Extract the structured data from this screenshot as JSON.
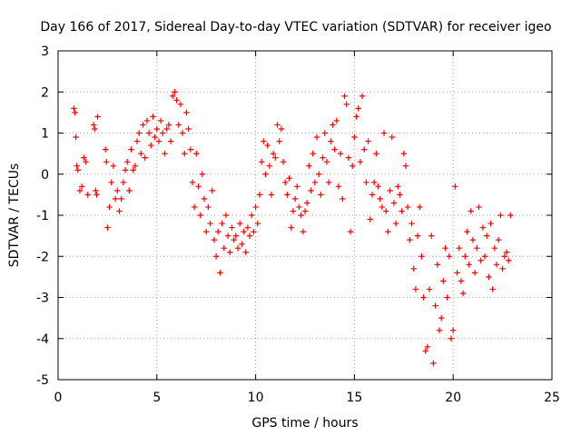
{
  "chart_data": {
    "type": "scatter",
    "title": "Day 166 of 2017, Sidereal Day-to-day VTEC variation (SDTVAR) for receiver igeo",
    "xlabel": "GPS time / hours",
    "ylabel": "SDTVAR / TECUs",
    "xlim": [
      0,
      25
    ],
    "ylim": [
      -5,
      3
    ],
    "xticks": [
      0,
      5,
      10,
      15,
      20,
      25
    ],
    "yticks": [
      -5,
      -4,
      -3,
      -2,
      -1,
      0,
      1,
      2,
      3
    ],
    "grid": true,
    "marker": "+",
    "color": "#ff0000",
    "series": [
      {
        "name": "SDTVAR",
        "points": [
          [
            0.8,
            1.6
          ],
          [
            0.85,
            1.5
          ],
          [
            0.9,
            0.9
          ],
          [
            0.95,
            0.2
          ],
          [
            1.0,
            0.1
          ],
          [
            1.1,
            -0.4
          ],
          [
            1.2,
            -0.3
          ],
          [
            1.3,
            0.4
          ],
          [
            1.4,
            0.3
          ],
          [
            1.5,
            -0.5
          ],
          [
            1.8,
            1.2
          ],
          [
            1.85,
            1.1
          ],
          [
            1.9,
            -0.4
          ],
          [
            1.95,
            -0.5
          ],
          [
            2.0,
            1.4
          ],
          [
            2.4,
            0.6
          ],
          [
            2.45,
            0.3
          ],
          [
            2.5,
            -1.3
          ],
          [
            2.6,
            -0.8
          ],
          [
            2.7,
            -0.2
          ],
          [
            2.8,
            0.2
          ],
          [
            2.9,
            -0.6
          ],
          [
            3.0,
            -0.4
          ],
          [
            3.1,
            -0.9
          ],
          [
            3.2,
            -0.6
          ],
          [
            3.3,
            -0.2
          ],
          [
            3.4,
            0.1
          ],
          [
            3.5,
            0.3
          ],
          [
            3.6,
            -0.4
          ],
          [
            3.7,
            0.6
          ],
          [
            3.8,
            0.1
          ],
          [
            3.9,
            0.2
          ],
          [
            4.0,
            0.8
          ],
          [
            4.1,
            1.0
          ],
          [
            4.2,
            0.5
          ],
          [
            4.3,
            1.2
          ],
          [
            4.4,
            0.4
          ],
          [
            4.5,
            1.3
          ],
          [
            4.6,
            1.0
          ],
          [
            4.7,
            0.7
          ],
          [
            4.8,
            1.4
          ],
          [
            4.9,
            0.9
          ],
          [
            5.0,
            1.1
          ],
          [
            5.1,
            0.8
          ],
          [
            5.2,
            1.3
          ],
          [
            5.3,
            1.0
          ],
          [
            5.4,
            0.5
          ],
          [
            5.5,
            1.1
          ],
          [
            5.6,
            1.2
          ],
          [
            5.7,
            0.8
          ],
          [
            5.8,
            1.9
          ],
          [
            5.9,
            2.0
          ],
          [
            6.0,
            1.8
          ],
          [
            6.1,
            1.2
          ],
          [
            6.2,
            1.7
          ],
          [
            6.3,
            1.0
          ],
          [
            6.4,
            0.5
          ],
          [
            6.5,
            1.5
          ],
          [
            6.6,
            1.1
          ],
          [
            6.7,
            0.6
          ],
          [
            6.8,
            -0.2
          ],
          [
            6.9,
            -0.8
          ],
          [
            7.0,
            0.5
          ],
          [
            7.1,
            -0.3
          ],
          [
            7.2,
            -1.0
          ],
          [
            7.3,
            0.0
          ],
          [
            7.4,
            -0.6
          ],
          [
            7.5,
            -1.4
          ],
          [
            7.6,
            -0.8
          ],
          [
            7.7,
            -1.2
          ],
          [
            7.8,
            -0.4
          ],
          [
            7.9,
            -1.6
          ],
          [
            8.0,
            -2.0
          ],
          [
            8.1,
            -1.4
          ],
          [
            8.2,
            -2.4
          ],
          [
            8.3,
            -1.2
          ],
          [
            8.4,
            -1.8
          ],
          [
            8.5,
            -1.0
          ],
          [
            8.6,
            -1.5
          ],
          [
            8.7,
            -1.9
          ],
          [
            8.8,
            -1.3
          ],
          [
            8.9,
            -1.6
          ],
          [
            9.0,
            -1.5
          ],
          [
            9.1,
            -1.8
          ],
          [
            9.2,
            -1.2
          ],
          [
            9.3,
            -1.7
          ],
          [
            9.4,
            -1.4
          ],
          [
            9.5,
            -1.9
          ],
          [
            9.6,
            -1.3
          ],
          [
            9.7,
            -1.5
          ],
          [
            9.8,
            -1.0
          ],
          [
            9.9,
            -1.4
          ],
          [
            10.0,
            -0.8
          ],
          [
            10.1,
            -1.2
          ],
          [
            10.2,
            -0.5
          ],
          [
            10.3,
            0.3
          ],
          [
            10.4,
            0.8
          ],
          [
            10.5,
            0.0
          ],
          [
            10.6,
            0.7
          ],
          [
            10.7,
            0.2
          ],
          [
            10.8,
            -0.5
          ],
          [
            10.9,
            0.5
          ],
          [
            11.0,
            0.4
          ],
          [
            11.1,
            1.2
          ],
          [
            11.2,
            0.8
          ],
          [
            11.3,
            1.1
          ],
          [
            11.4,
            0.3
          ],
          [
            11.5,
            -0.2
          ],
          [
            11.6,
            -0.5
          ],
          [
            11.7,
            -0.1
          ],
          [
            11.8,
            -1.3
          ],
          [
            11.9,
            -0.9
          ],
          [
            12.0,
            -0.6
          ],
          [
            12.1,
            -0.3
          ],
          [
            12.2,
            -0.8
          ],
          [
            12.3,
            -1.0
          ],
          [
            12.4,
            -1.4
          ],
          [
            12.5,
            -0.9
          ],
          [
            12.6,
            -0.7
          ],
          [
            12.7,
            0.2
          ],
          [
            12.8,
            -0.4
          ],
          [
            12.9,
            0.5
          ],
          [
            13.0,
            -0.2
          ],
          [
            13.1,
            0.9
          ],
          [
            13.2,
            0.0
          ],
          [
            13.3,
            -0.5
          ],
          [
            13.4,
            0.4
          ],
          [
            13.5,
            1.0
          ],
          [
            13.6,
            0.3
          ],
          [
            13.7,
            -0.2
          ],
          [
            13.8,
            0.8
          ],
          [
            13.9,
            1.2
          ],
          [
            14.0,
            0.6
          ],
          [
            14.1,
            1.3
          ],
          [
            14.2,
            -0.3
          ],
          [
            14.3,
            0.5
          ],
          [
            14.4,
            -0.6
          ],
          [
            14.5,
            1.9
          ],
          [
            14.6,
            1.7
          ],
          [
            14.7,
            0.4
          ],
          [
            14.8,
            -1.4
          ],
          [
            14.9,
            0.2
          ],
          [
            15.0,
            0.9
          ],
          [
            15.1,
            1.4
          ],
          [
            15.2,
            1.6
          ],
          [
            15.3,
            0.3
          ],
          [
            15.4,
            1.9
          ],
          [
            15.5,
            0.6
          ],
          [
            15.6,
            -0.2
          ],
          [
            15.7,
            0.8
          ],
          [
            15.8,
            -1.1
          ],
          [
            15.9,
            -0.5
          ],
          [
            16.0,
            -0.2
          ],
          [
            16.1,
            0.5
          ],
          [
            16.2,
            -0.3
          ],
          [
            16.3,
            -0.6
          ],
          [
            16.4,
            -0.8
          ],
          [
            16.5,
            1.0
          ],
          [
            16.6,
            -0.9
          ],
          [
            16.7,
            -1.4
          ],
          [
            16.8,
            -0.4
          ],
          [
            16.9,
            0.9
          ],
          [
            17.0,
            -0.7
          ],
          [
            17.1,
            -1.2
          ],
          [
            17.2,
            -0.3
          ],
          [
            17.3,
            -0.5
          ],
          [
            17.4,
            -0.9
          ],
          [
            17.5,
            0.5
          ],
          [
            17.6,
            0.2
          ],
          [
            17.7,
            -0.8
          ],
          [
            17.8,
            -1.6
          ],
          [
            17.9,
            -1.2
          ],
          [
            18.0,
            -2.3
          ],
          [
            18.1,
            -2.8
          ],
          [
            18.2,
            -1.5
          ],
          [
            18.3,
            -0.8
          ],
          [
            18.4,
            -2.0
          ],
          [
            18.5,
            -3.0
          ],
          [
            18.6,
            -4.3
          ],
          [
            18.7,
            -4.2
          ],
          [
            18.8,
            -2.8
          ],
          [
            18.9,
            -1.5
          ],
          [
            19.0,
            -4.6
          ],
          [
            19.1,
            -3.2
          ],
          [
            19.2,
            -2.2
          ],
          [
            19.3,
            -3.8
          ],
          [
            19.4,
            -3.5
          ],
          [
            19.5,
            -2.6
          ],
          [
            19.6,
            -1.8
          ],
          [
            19.7,
            -3.0
          ],
          [
            19.8,
            -2.0
          ],
          [
            19.9,
            -4.0
          ],
          [
            20.0,
            -3.8
          ],
          [
            20.1,
            -0.3
          ],
          [
            20.2,
            -2.4
          ],
          [
            20.3,
            -1.8
          ],
          [
            20.4,
            -2.6
          ],
          [
            20.5,
            -2.9
          ],
          [
            20.6,
            -2.0
          ],
          [
            20.7,
            -1.4
          ],
          [
            20.8,
            -2.2
          ],
          [
            20.9,
            -0.9
          ],
          [
            21.0,
            -1.6
          ],
          [
            21.1,
            -2.4
          ],
          [
            21.2,
            -1.8
          ],
          [
            21.3,
            -0.8
          ],
          [
            21.4,
            -2.1
          ],
          [
            21.5,
            -1.3
          ],
          [
            21.6,
            -2.0
          ],
          [
            21.7,
            -1.5
          ],
          [
            21.8,
            -2.5
          ],
          [
            21.9,
            -1.2
          ],
          [
            22.0,
            -2.8
          ],
          [
            22.1,
            -1.8
          ],
          [
            22.2,
            -2.2
          ],
          [
            22.3,
            -1.6
          ],
          [
            22.4,
            -1.0
          ],
          [
            22.5,
            -2.3
          ],
          [
            22.6,
            -2.0
          ],
          [
            22.7,
            -1.9
          ],
          [
            22.8,
            -2.1
          ],
          [
            22.9,
            -1.0
          ]
        ]
      }
    ]
  }
}
